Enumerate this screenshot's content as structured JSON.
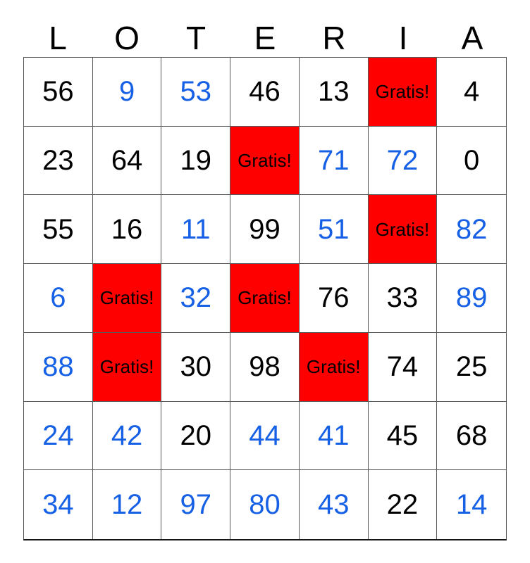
{
  "title": {
    "letters": [
      "L",
      "O",
      "T",
      "E",
      "R",
      "I",
      "A"
    ]
  },
  "free_label": "Gratis!",
  "colors": {
    "free_cell_bg": "#ff0000",
    "marked_number": "#1660e6",
    "unmarked_number": "#000000",
    "grid_line": "#595959"
  },
  "grid": {
    "rows": [
      [
        {
          "value": "56",
          "type": "black"
        },
        {
          "value": "9",
          "type": "blue"
        },
        {
          "value": "53",
          "type": "blue"
        },
        {
          "value": "46",
          "type": "black"
        },
        {
          "value": "13",
          "type": "black"
        },
        {
          "value": "",
          "type": "free"
        },
        {
          "value": "4",
          "type": "black"
        }
      ],
      [
        {
          "value": "23",
          "type": "black"
        },
        {
          "value": "64",
          "type": "black"
        },
        {
          "value": "19",
          "type": "black"
        },
        {
          "value": "",
          "type": "free"
        },
        {
          "value": "71",
          "type": "blue"
        },
        {
          "value": "72",
          "type": "blue"
        },
        {
          "value": "0",
          "type": "black"
        }
      ],
      [
        {
          "value": "55",
          "type": "black"
        },
        {
          "value": "16",
          "type": "black"
        },
        {
          "value": "11",
          "type": "blue"
        },
        {
          "value": "99",
          "type": "black"
        },
        {
          "value": "51",
          "type": "blue"
        },
        {
          "value": "",
          "type": "free"
        },
        {
          "value": "82",
          "type": "blue"
        }
      ],
      [
        {
          "value": "6",
          "type": "blue"
        },
        {
          "value": "",
          "type": "free"
        },
        {
          "value": "32",
          "type": "blue"
        },
        {
          "value": "",
          "type": "free"
        },
        {
          "value": "76",
          "type": "black"
        },
        {
          "value": "33",
          "type": "black"
        },
        {
          "value": "89",
          "type": "blue"
        }
      ],
      [
        {
          "value": "88",
          "type": "blue"
        },
        {
          "value": "",
          "type": "free"
        },
        {
          "value": "30",
          "type": "black"
        },
        {
          "value": "98",
          "type": "black"
        },
        {
          "value": "",
          "type": "free"
        },
        {
          "value": "74",
          "type": "black"
        },
        {
          "value": "25",
          "type": "black"
        }
      ],
      [
        {
          "value": "24",
          "type": "blue"
        },
        {
          "value": "42",
          "type": "blue"
        },
        {
          "value": "20",
          "type": "black"
        },
        {
          "value": "44",
          "type": "blue"
        },
        {
          "value": "41",
          "type": "blue"
        },
        {
          "value": "45",
          "type": "black"
        },
        {
          "value": "68",
          "type": "black"
        }
      ],
      [
        {
          "value": "34",
          "type": "blue"
        },
        {
          "value": "12",
          "type": "blue"
        },
        {
          "value": "97",
          "type": "blue"
        },
        {
          "value": "80",
          "type": "blue"
        },
        {
          "value": "43",
          "type": "blue"
        },
        {
          "value": "22",
          "type": "black"
        },
        {
          "value": "14",
          "type": "blue"
        }
      ]
    ]
  }
}
